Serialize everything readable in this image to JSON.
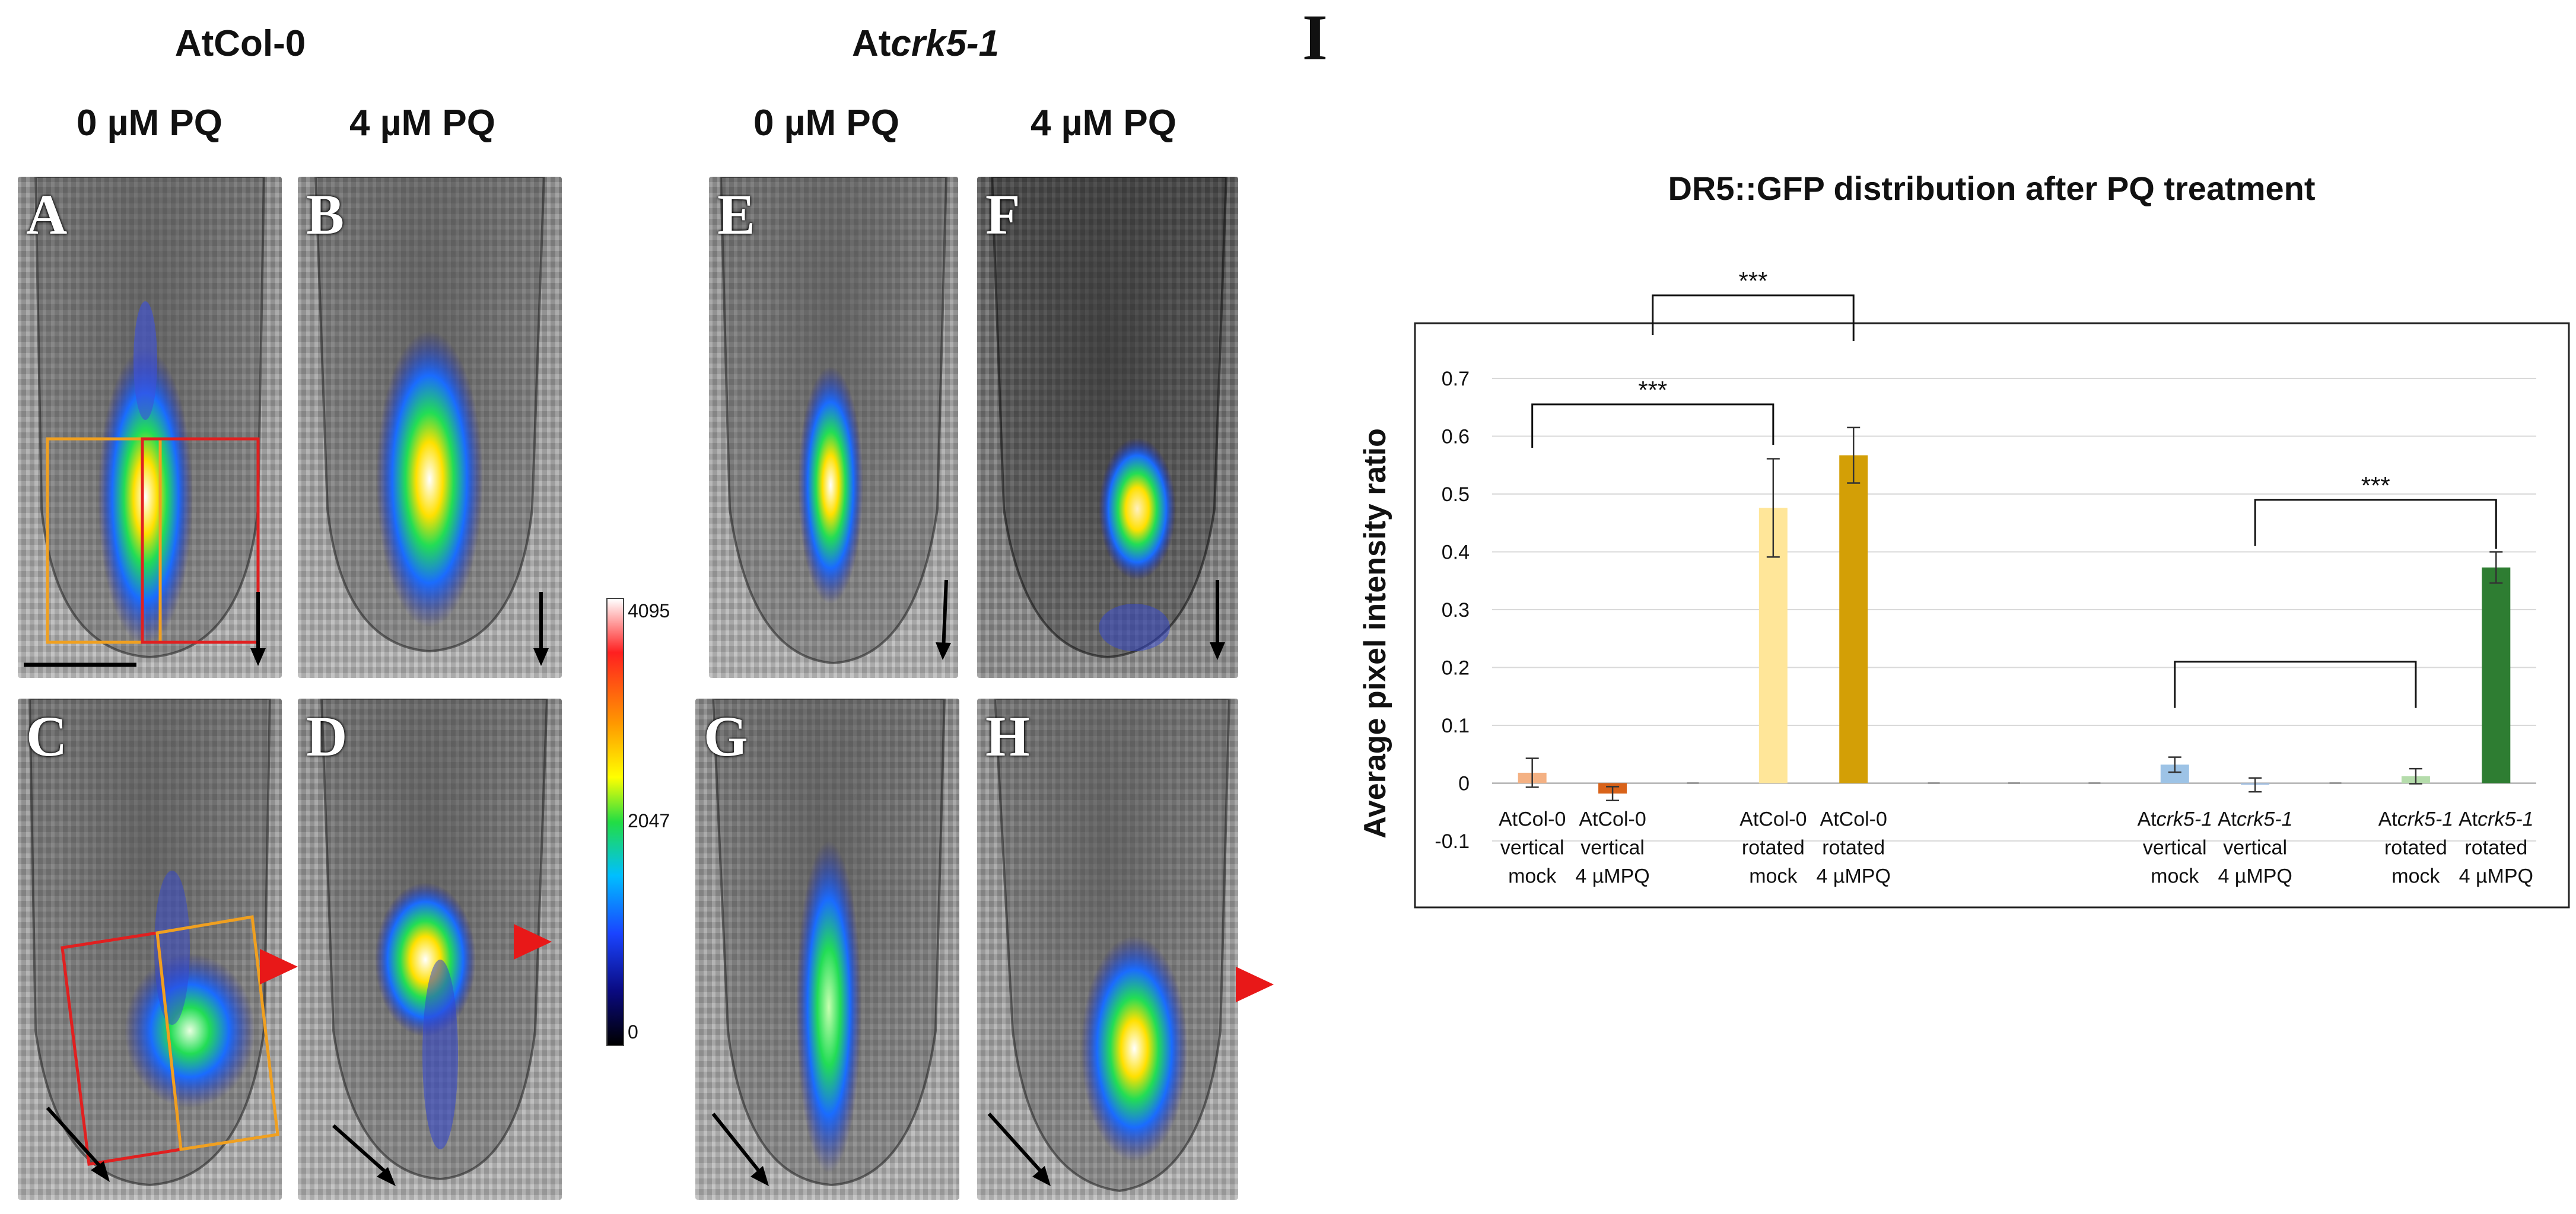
{
  "headers": {
    "wt_genotype": "AtCol-0",
    "mut_prefix": "At",
    "mut_italic": "crk5-1",
    "conditions": [
      "0 µM PQ",
      "4 µM PQ",
      "0 µM PQ",
      "4 µM PQ"
    ]
  },
  "panels": [
    "A",
    "B",
    "C",
    "D",
    "E",
    "F",
    "G",
    "H"
  ],
  "colorbar": {
    "ticks": [
      "4095",
      "2047",
      "0"
    ]
  },
  "figure_label": "I",
  "colors": {
    "bar_colors": [
      "#f4b183",
      "#d9631a",
      "#ffe699",
      "#d39f06",
      "#9dc3e6",
      "#a9c4e4",
      "#b5dcab",
      "#2e7d32"
    ],
    "box_orange": "#f0a020",
    "box_red": "#e02020",
    "arrowhead": "#e81818"
  },
  "chart_data": {
    "type": "bar",
    "title": "DR5::GFP distribution after PQ treatment",
    "ylabel": "Average pixel intensity ratio",
    "xlabel": "",
    "ylim": [
      -0.1,
      0.7
    ],
    "yticks": [
      "0.7",
      "0.6",
      "0.5",
      "0.4",
      "0.3",
      "0.2",
      "0.1",
      "0",
      "-0.1"
    ],
    "slots": 13,
    "bars": [
      {
        "slot": 0,
        "value": 0.018,
        "error": 0.025,
        "label_prefix": "AtCol-0",
        "label_italic": "",
        "line2": "vertical",
        "line3": "mock"
      },
      {
        "slot": 1,
        "value": -0.018,
        "error": 0.012,
        "label_prefix": "AtCol-0",
        "label_italic": "",
        "line2": "vertical",
        "line3": "4 µMPQ"
      },
      {
        "slot": 3,
        "value": 0.476,
        "error": 0.085,
        "label_prefix": "AtCol-0",
        "label_italic": "",
        "line2": "rotated",
        "line3": "mock"
      },
      {
        "slot": 4,
        "value": 0.567,
        "error": 0.048,
        "label_prefix": "AtCol-0",
        "label_italic": "",
        "line2": "rotated",
        "line3": "4 µMPQ"
      },
      {
        "slot": 8,
        "value": 0.032,
        "error": 0.013,
        "label_prefix": "At",
        "label_italic": "crk5-1",
        "line2": "vertical",
        "line3": "mock"
      },
      {
        "slot": 9,
        "value": -0.003,
        "error": 0.012,
        "label_prefix": "At",
        "label_italic": "crk5-1",
        "line2": "vertical",
        "line3": "4 µMPQ"
      },
      {
        "slot": 11,
        "value": 0.012,
        "error": 0.013,
        "label_prefix": "At",
        "label_italic": "crk5-1",
        "line2": "rotated",
        "line3": "mock"
      },
      {
        "slot": 12,
        "value": 0.373,
        "error": 0.027,
        "label_prefix": "At",
        "label_italic": "crk5-1",
        "line2": "rotated",
        "line3": "4 µMPQ"
      }
    ],
    "empty_slots": [
      2,
      5,
      6,
      7,
      10
    ],
    "significance": [
      {
        "from_slot": 1.5,
        "to_slot": 4,
        "label": "***",
        "outside": true
      },
      {
        "from_slot": 0,
        "to_slot": 3,
        "label": "***",
        "outside": false
      },
      {
        "from_slot": 9,
        "to_slot": 12,
        "label": "***",
        "outside": false
      },
      {
        "from_slot": 8,
        "to_slot": 11,
        "label": "",
        "outside": false
      }
    ]
  }
}
